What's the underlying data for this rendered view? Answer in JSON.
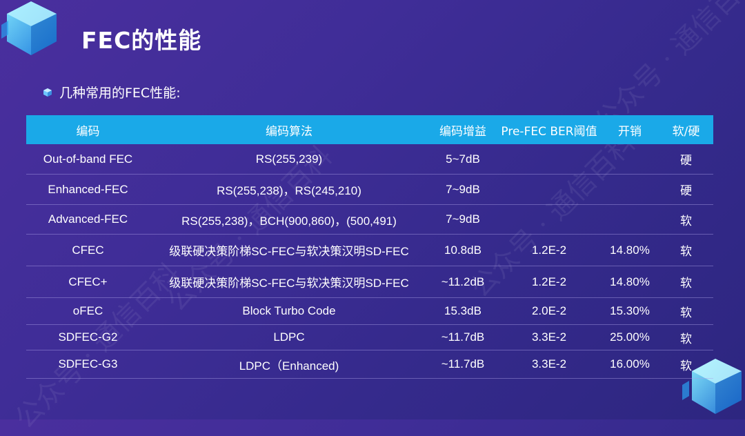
{
  "title": "FEC的性能",
  "subtitle": "几种常用的FEC性能:",
  "watermark": "公众号 · 通信百科",
  "colors": {
    "header_bg": "#1aa9e8",
    "cube_accent": "#34d0ff"
  },
  "table": {
    "headers": [
      "编码",
      "编码算法",
      "编码增益",
      "Pre-FEC BER阈值",
      "开销",
      "软/硬"
    ],
    "rows": [
      [
        "Out-of-band FEC",
        "RS(255,239)",
        "5~7dB",
        "",
        "",
        "硬"
      ],
      [
        "Enhanced-FEC",
        "RS(255,238)，RS(245,210)",
        "7~9dB",
        "",
        "",
        "硬"
      ],
      [
        "Advanced-FEC",
        "RS(255,238)，BCH(900,860)，(500,491)",
        "7~9dB",
        "",
        "",
        "软"
      ],
      [
        "CFEC",
        "级联硬决策阶梯SC-FEC与软决策汉明SD-FEC",
        "10.8dB",
        "1.2E-2",
        "14.80%",
        "软"
      ],
      [
        "CFEC+",
        "级联硬决策阶梯SC-FEC与软决策汉明SD-FEC",
        "~11.2dB",
        "1.2E-2",
        "14.80%",
        "软"
      ],
      [
        "oFEC",
        "Block Turbo Code",
        "15.3dB",
        "2.0E-2",
        "15.30%",
        "软"
      ],
      [
        "SDFEC-G2",
        "LDPC",
        "~11.7dB",
        "3.3E-2",
        "25.00%",
        "软"
      ],
      [
        "SDFEC-G3",
        "LDPC（Enhanced)",
        "~11.7dB",
        "3.3E-2",
        "16.00%",
        "软"
      ]
    ]
  }
}
